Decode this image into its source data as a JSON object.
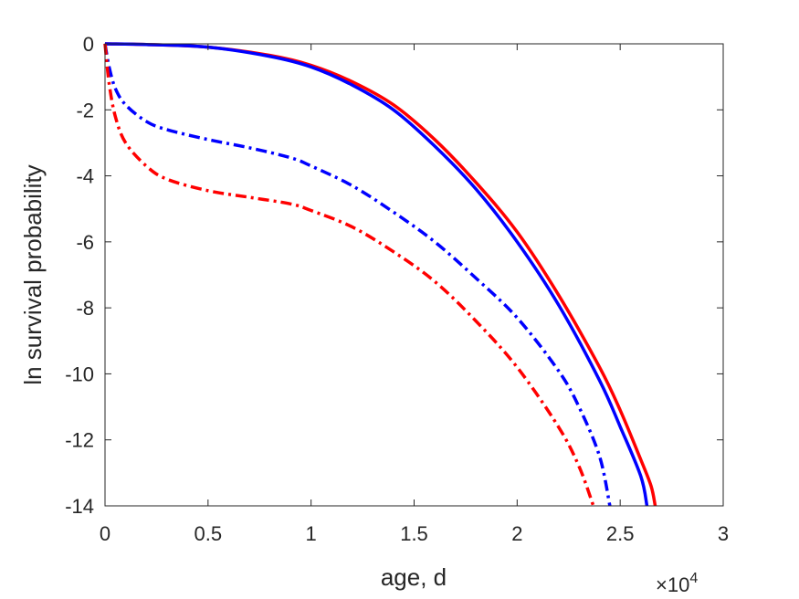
{
  "chart_data": {
    "type": "line",
    "xlabel": "age, d",
    "ylabel": "ln survival probability",
    "x_exponent_label": "×10",
    "x_exponent_power": "4",
    "xlim": [
      0,
      30000
    ],
    "ylim": [
      -14,
      0
    ],
    "xticks": [
      0,
      5000,
      10000,
      15000,
      20000,
      25000,
      30000
    ],
    "xtick_labels": [
      "0",
      "0.5",
      "1",
      "1.5",
      "2",
      "2.5",
      "3"
    ],
    "yticks": [
      0,
      -2,
      -4,
      -6,
      -8,
      -10,
      -12,
      -14
    ],
    "ytick_labels": [
      "0",
      "-2",
      "-4",
      "-6",
      "-8",
      "-10",
      "-12",
      "-14"
    ],
    "grid": false,
    "legend": "none",
    "series": [
      {
        "color": "#ff0000",
        "style": "solid",
        "x": [
          0,
          2000,
          5000,
          8000,
          10000,
          12000,
          14000,
          16000,
          18000,
          20000,
          22000,
          24000,
          25000,
          26000,
          26500,
          26700
        ],
        "y": [
          0,
          -0.02,
          -0.1,
          -0.35,
          -0.65,
          -1.15,
          -1.85,
          -2.9,
          -4.2,
          -5.7,
          -7.6,
          -9.8,
          -11.1,
          -12.6,
          -13.4,
          -14
        ]
      },
      {
        "color": "#0000ff",
        "style": "solid",
        "x": [
          0,
          2000,
          5000,
          8000,
          10000,
          12000,
          14000,
          16000,
          18000,
          20000,
          22000,
          24000,
          25000,
          26000,
          26300
        ],
        "y": [
          0,
          -0.02,
          -0.1,
          -0.38,
          -0.7,
          -1.25,
          -2.0,
          -3.1,
          -4.4,
          -6.0,
          -7.9,
          -10.2,
          -11.6,
          -13.1,
          -14
        ]
      },
      {
        "color": "#0000ff",
        "style": "dashdot",
        "x": [
          0,
          200,
          500,
          1000,
          2000,
          3000,
          5000,
          7000,
          9000,
          10000,
          12000,
          14000,
          16000,
          18000,
          20000,
          22000,
          23000,
          24000,
          24500
        ],
        "y": [
          0,
          -0.7,
          -1.35,
          -1.85,
          -2.35,
          -2.6,
          -2.9,
          -3.15,
          -3.45,
          -3.7,
          -4.3,
          -5.1,
          -6.0,
          -7.1,
          -8.3,
          -9.9,
          -11.0,
          -12.5,
          -14
        ]
      },
      {
        "color": "#ff0000",
        "style": "dashdot",
        "x": [
          0,
          200,
          500,
          1000,
          2000,
          3000,
          5000,
          7000,
          9000,
          10000,
          12000,
          14000,
          16000,
          18000,
          20000,
          22000,
          23000,
          23700
        ],
        "y": [
          0,
          -1.2,
          -2.2,
          -3.0,
          -3.7,
          -4.1,
          -4.45,
          -4.65,
          -4.85,
          -5.05,
          -5.55,
          -6.3,
          -7.2,
          -8.4,
          -9.8,
          -11.6,
          -12.8,
          -14
        ]
      }
    ]
  }
}
